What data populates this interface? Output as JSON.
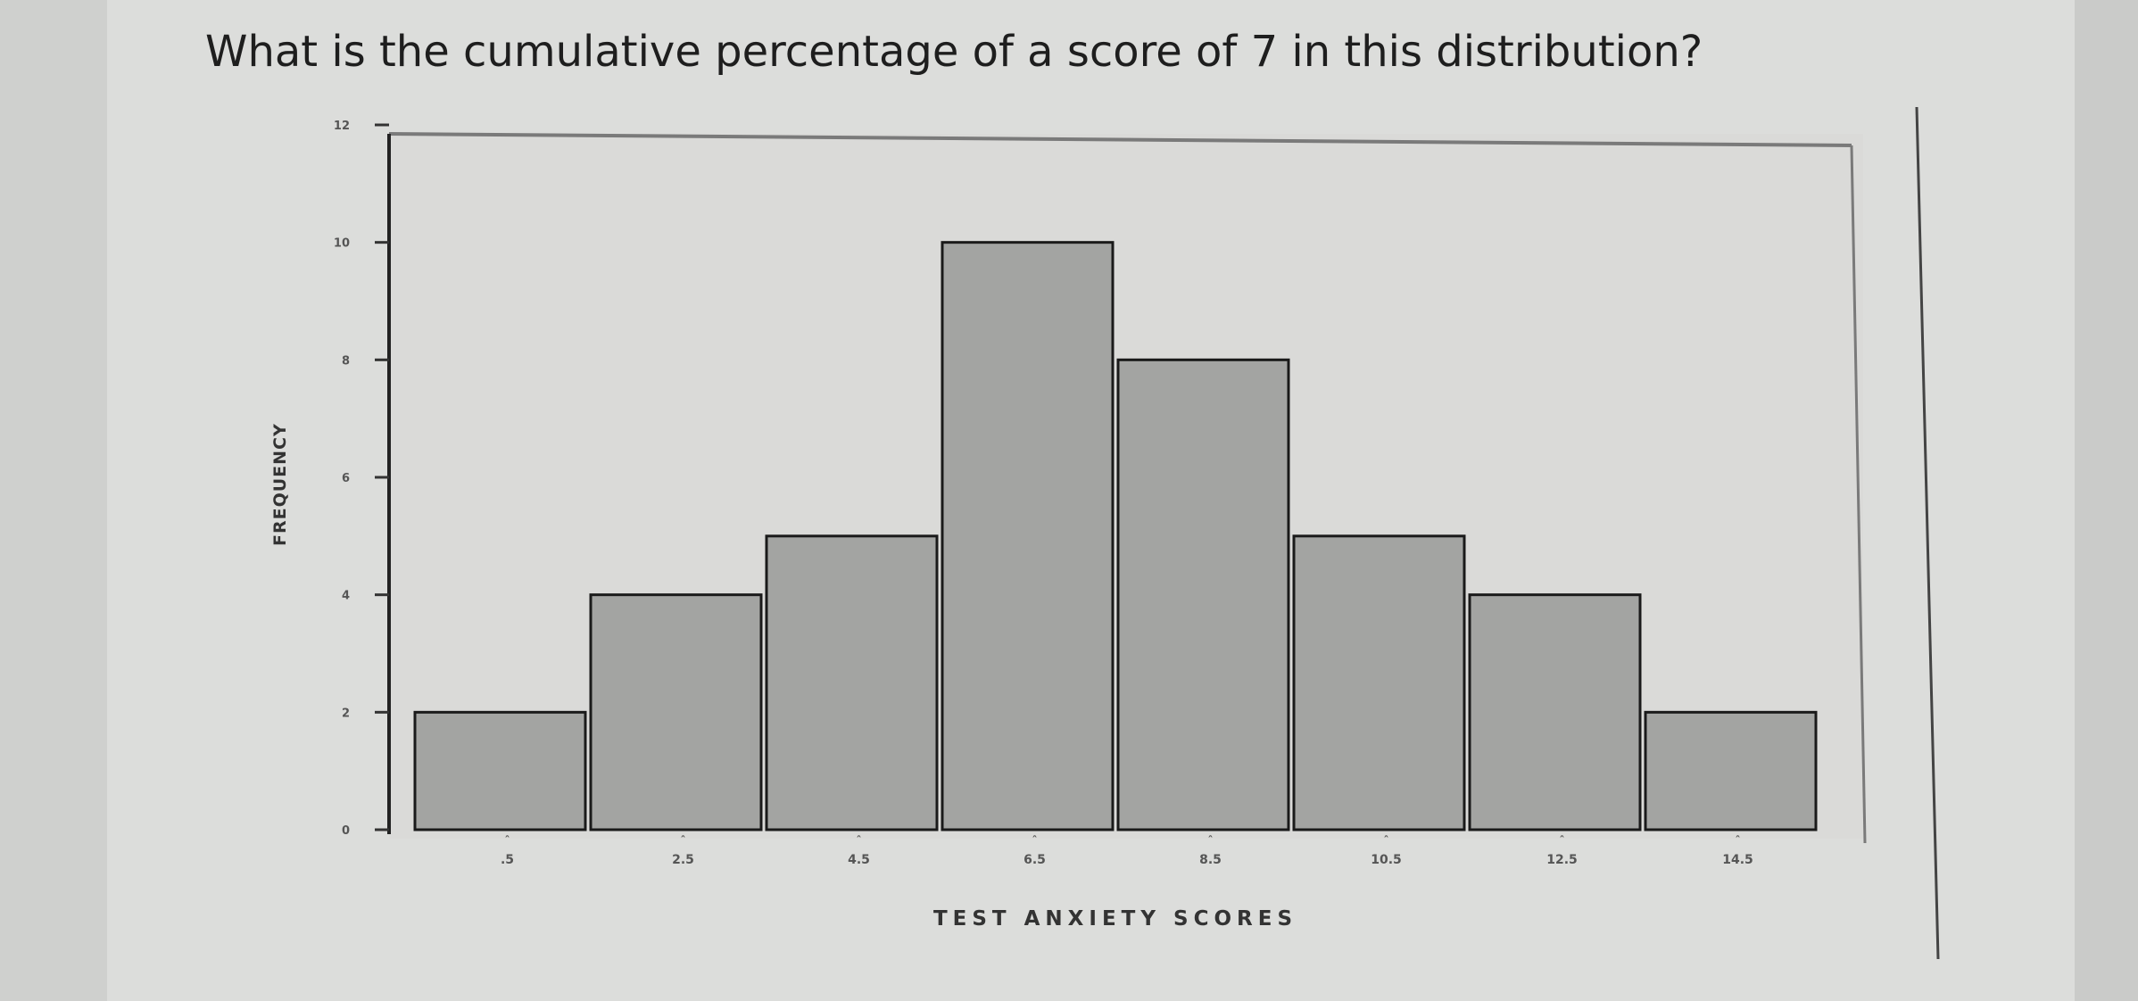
{
  "question": {
    "text": "What is the cumulative percentage of a score of 7 in this distribution?"
  },
  "chart_data": {
    "type": "bar",
    "categories": [
      ".5",
      "2.5",
      "4.5",
      "6.5",
      "8.5",
      "10.5",
      "12.5",
      "14.5"
    ],
    "series": [
      {
        "values": [
          2,
          4,
          5,
          10,
          8,
          5,
          4,
          2
        ]
      }
    ],
    "title": "",
    "xlabel": "TEST ANXIETY SCORES",
    "ylabel": "FREQUENCY",
    "ylim": [
      0,
      12
    ],
    "yticks": [
      0,
      2,
      4,
      6,
      8,
      10,
      12
    ],
    "ytick_labels": [
      "0",
      "2",
      "4",
      "6",
      "8",
      "10",
      "12"
    ],
    "grid": false,
    "legend": "none",
    "colors": {
      "bar_fill": "#a3a4a2",
      "bar_stroke": "#1a1a1a",
      "plot_background": "#dadad8"
    }
  }
}
